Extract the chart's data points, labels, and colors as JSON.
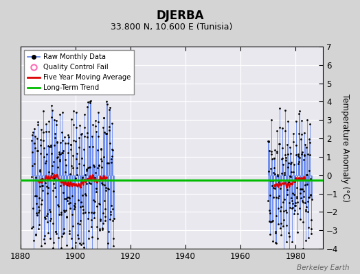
{
  "title": "DJERBA",
  "subtitle": "33.800 N, 10.600 E (Tunisia)",
  "ylabel": "Temperature Anomaly (°C)",
  "watermark": "Berkeley Earth",
  "xlim": [
    1880,
    1990
  ],
  "ylim": [
    -4,
    7
  ],
  "yticks": [
    -4,
    -3,
    -2,
    -1,
    0,
    1,
    2,
    3,
    4,
    5,
    6,
    7
  ],
  "xticks": [
    1880,
    1900,
    1920,
    1940,
    1960,
    1980
  ],
  "long_term_trend_y": -0.28,
  "fig_facecolor": "#d4d4d4",
  "ax_facecolor": "#e8e8ee",
  "raw_line_color": "#6688ee",
  "raw_dot_color": "#000000",
  "moving_avg_color": "#dd0000",
  "trend_color": "#00bb00",
  "qc_color": "#ff69b4",
  "period1_start": 1884,
  "period1_end": 1914,
  "period2_start": 1970,
  "period2_end": 1986
}
